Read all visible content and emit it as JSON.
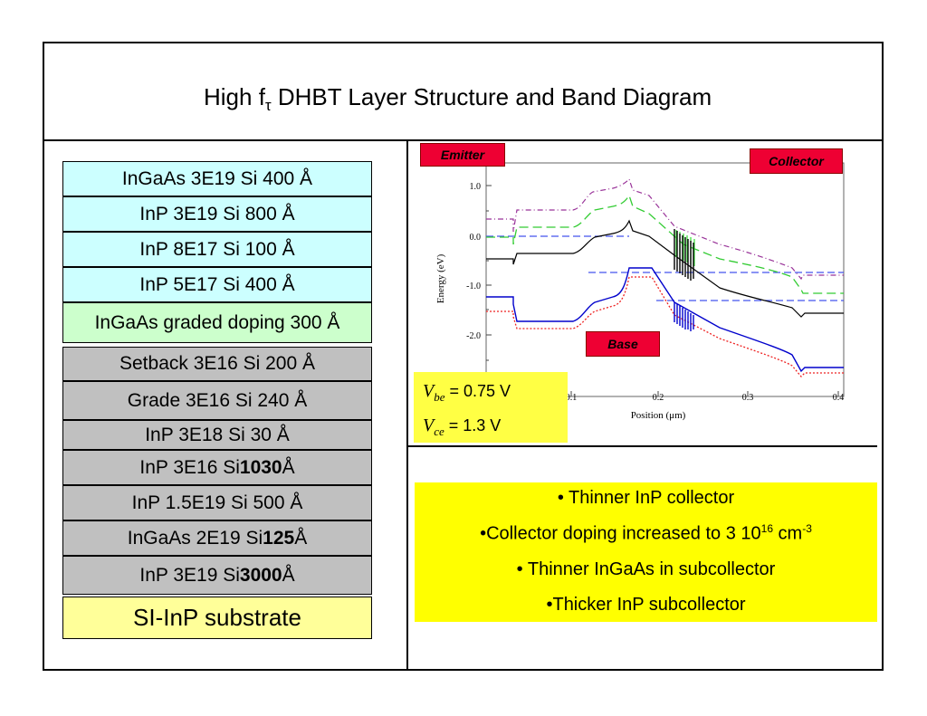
{
  "title": {
    "main_before": "High f",
    "subscript": "τ",
    "main_after": " DHBT Layer Structure and Band Diagram"
  },
  "layers": [
    {
      "pre": "InGaAs 3E19 Si 400 Å",
      "bold": "",
      "post": "",
      "color": "#ccffff"
    },
    {
      "pre": "InP 3E19 Si 800 Å",
      "bold": "",
      "post": "",
      "color": "#ccffff"
    },
    {
      "pre": "InP 8E17 Si 100 Å",
      "bold": "",
      "post": "",
      "color": "#ccffff"
    },
    {
      "pre": "InP 5E17 Si 400 Å",
      "bold": "",
      "post": "",
      "color": "#ccffff"
    },
    {
      "pre": "InGaAs graded doping 300 Å",
      "bold": "",
      "post": "",
      "color": "#ccffcc"
    },
    {
      "pre": "Setback 3E16 Si 200 Å",
      "bold": "",
      "post": "",
      "color": "#c0c0c0"
    },
    {
      "pre": "Grade 3E16 Si 240 Å",
      "bold": "",
      "post": "",
      "color": "#c0c0c0"
    },
    {
      "pre": "InP 3E18 Si 30 Å",
      "bold": "",
      "post": "",
      "color": "#c0c0c0"
    },
    {
      "pre": "InP 3E16 Si ",
      "bold": "1030",
      "post": " Å",
      "color": "#c0c0c0"
    },
    {
      "pre": "InP 1.5E19 Si 500 Å",
      "bold": "",
      "post": "",
      "color": "#c0c0c0"
    },
    {
      "pre": "InGaAs 2E19 Si ",
      "bold": "125",
      "post": " Å",
      "color": "#c0c0c0"
    },
    {
      "pre": "InP 3E19 Si ",
      "bold": "3000",
      "post": " Å",
      "color": "#c0c0c0"
    },
    {
      "pre": "SI-InP substrate",
      "bold": "",
      "post": "",
      "color": "#ffff99"
    }
  ],
  "band_diagram": {
    "ylabel": "Energy (eV)",
    "xlabel": "Position (μm)",
    "y_ticks": [
      "1.0",
      "0.0",
      "-1.0",
      "-2.0"
    ],
    "x_ticks": [
      "0.1",
      "0.2",
      "0.3",
      "0.4"
    ],
    "tags": {
      "emitter": "Emitter",
      "collector": "Collector",
      "base": "Base"
    }
  },
  "bias": {
    "vbe_sym": "V",
    "vbe_sub": "be",
    "vbe_val": " = 0.75 V",
    "vce_sym": "V",
    "vce_sub": "ce",
    "vce_val": " = 1.3 V"
  },
  "notes": {
    "n1": "• Thinner InP collector",
    "n2_pre": "•Collector doping increased to 3 10",
    "n2_sup1": "16",
    "n2_mid": " cm",
    "n2_sup2": "-3",
    "n3": "• Thinner InGaAs in subcollector",
    "n4": "•Thicker InP subcollector"
  },
  "colors": {
    "conduction": "#000000",
    "valence": "#0000cc",
    "fermi": "#4455ee",
    "upper": "#993399",
    "green": "#33cc33",
    "red": "#ee2222"
  }
}
